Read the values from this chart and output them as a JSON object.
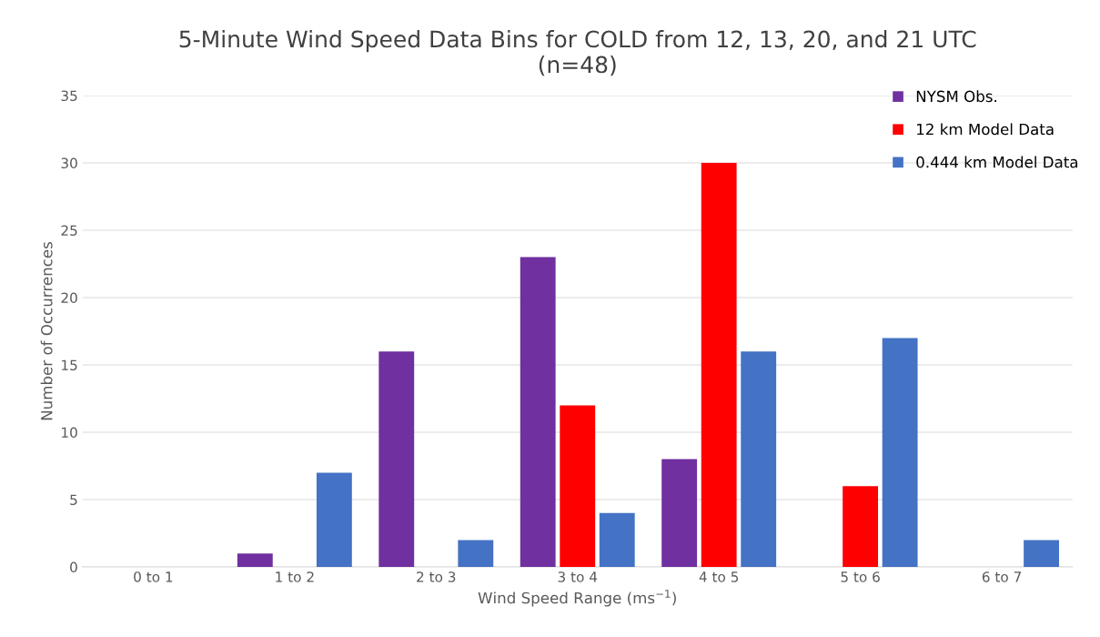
{
  "chart_data": {
    "type": "bar",
    "title": "5-Minute Wind Speed Data Bins for COLD from 12, 13, 20, and 21 UTC\n(n=48)",
    "xlabel": "Wind Speed Range (ms$^{−1}$)",
    "ylabel": "Number of Occurrences",
    "categories": [
      "0 to 1",
      "1 to 2",
      "2 to 3",
      "3 to 4",
      "4 to 5",
      "5 to 6",
      "6 to 7"
    ],
    "series": [
      {
        "name": "NYSM Obs.",
        "color": "#7030a0",
        "values": [
          0,
          1,
          16,
          23,
          8,
          0,
          0
        ]
      },
      {
        "name": "12 km Model Data",
        "color": "#ff0000",
        "values": [
          0,
          0,
          0,
          12,
          30,
          6,
          0
        ]
      },
      {
        "name": "0.444 km Model Data",
        "color": "#4472c4",
        "values": [
          0,
          7,
          2,
          4,
          16,
          17,
          2
        ]
      }
    ],
    "ylim": [
      0,
      35
    ],
    "yticks": [
      0,
      5,
      10,
      15,
      20,
      25,
      30,
      35
    ],
    "grid": "y",
    "legend": "top right"
  }
}
